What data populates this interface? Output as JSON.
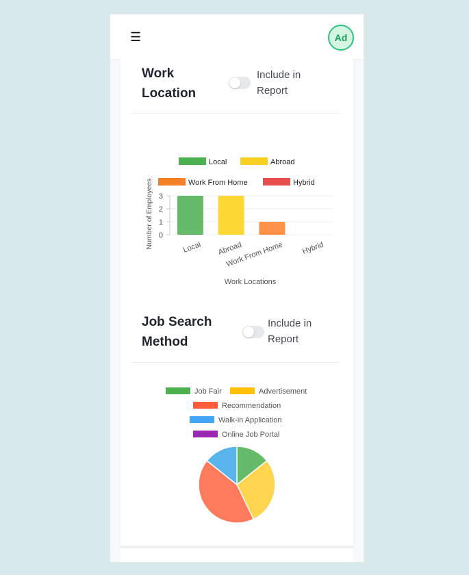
{
  "header": {
    "menu_icon": "hamburger-icon",
    "avatar_initials": "Ad"
  },
  "sections": [
    {
      "title": "Work Location",
      "toggle_label": "Include in Report",
      "toggle_on": false
    },
    {
      "title": "Job Search Method",
      "toggle_label": "Include in Report",
      "toggle_on": false
    }
  ],
  "chart_data": [
    {
      "type": "bar",
      "categories": [
        "Local",
        "Abroad",
        "Work From Home",
        "Hybrid"
      ],
      "values": [
        3,
        3,
        1,
        0
      ],
      "colors": [
        "#66bb6a",
        "#fdd835",
        "#ff9149",
        "#ef5350"
      ],
      "legend": [
        "Local",
        "Abroad",
        "Work From Home",
        "Hybrid"
      ],
      "legend_colors": [
        "#4caf50",
        "#f9d01f",
        "#f58025",
        "#e94e4e"
      ],
      "title": "",
      "xlabel": "Work Locations",
      "ylabel": "Number of Employees",
      "yticks": [
        "0",
        "1",
        "2",
        "3"
      ],
      "ylim": [
        0,
        3
      ],
      "legend_position": "top"
    },
    {
      "type": "pie",
      "categories": [
        "Job Fair",
        "Advertisement",
        "Recommendation",
        "Walk-in Application",
        "Online Job Portal"
      ],
      "values": [
        1,
        2,
        3,
        1,
        0
      ],
      "colors": [
        "#66bb6a",
        "#ffd54f",
        "#ff7b5e",
        "#5ab4ec",
        "#9c3fbd"
      ],
      "legend_colors": [
        "#4caf50",
        "#ffc107",
        "#ff5d3b",
        "#42a5f5",
        "#9c27b0"
      ],
      "legend_position": "top"
    }
  ]
}
